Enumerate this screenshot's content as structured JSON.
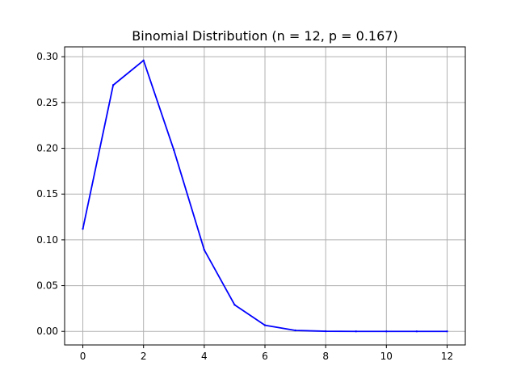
{
  "chart_data": {
    "type": "line",
    "title": "Binomial Distribution (n = 12, p = 0.167)",
    "xlabel": "",
    "ylabel": "",
    "x": [
      0,
      1,
      2,
      3,
      4,
      5,
      6,
      7,
      8,
      9,
      10,
      11,
      12
    ],
    "series": [
      {
        "values": [
          0.112,
          0.269,
          0.296,
          0.198,
          0.089,
          0.029,
          0.0067,
          0.0011,
          0.00014,
          1.3e-05,
          8e-07,
          3e-08,
          5e-10
        ]
      }
    ],
    "xlim": [
      -0.6,
      12.6
    ],
    "ylim": [
      -0.0148,
      0.3108
    ],
    "xticks": [
      0,
      2,
      4,
      6,
      8,
      10,
      12
    ],
    "xtick_labels": [
      "0",
      "2",
      "4",
      "6",
      "8",
      "10",
      "12"
    ],
    "yticks": [
      0.0,
      0.05,
      0.1,
      0.15,
      0.2,
      0.25,
      0.3
    ],
    "ytick_labels": [
      "0.00",
      "0.05",
      "0.10",
      "0.15",
      "0.20",
      "0.25",
      "0.30"
    ],
    "grid": true,
    "colors": {
      "line": "#0000ff",
      "grid": "#b0b0b0",
      "axes": "#000000"
    }
  }
}
